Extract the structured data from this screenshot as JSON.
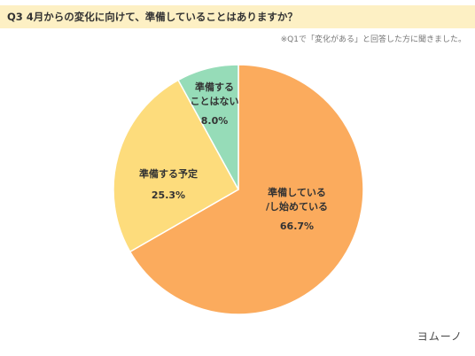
{
  "header": {
    "title": "Q3 4月からの変化に向けて、準備していることはありますか？",
    "note": "※Q1で「変化がある」と回答した方に聞きました。"
  },
  "chart_data": {
    "type": "pie",
    "title": "Q3 4月からの変化に向けて、準備していることはありますか？",
    "slices": [
      {
        "label_lines": [
          "準備している",
          "/し始めている"
        ],
        "value": 66.7,
        "display": "66.7%",
        "color": "#fbab5d"
      },
      {
        "label_lines": [
          "準備する予定"
        ],
        "value": 25.3,
        "display": "25.3%",
        "color": "#fddc7c"
      },
      {
        "label_lines": [
          "準備する",
          "ことはない"
        ],
        "value": 8.0,
        "display": "8.0%",
        "color": "#96dcb8"
      }
    ],
    "start_angle_deg": 0,
    "direction": "clockwise"
  },
  "footer": {
    "logo": "ヨムーノ"
  }
}
